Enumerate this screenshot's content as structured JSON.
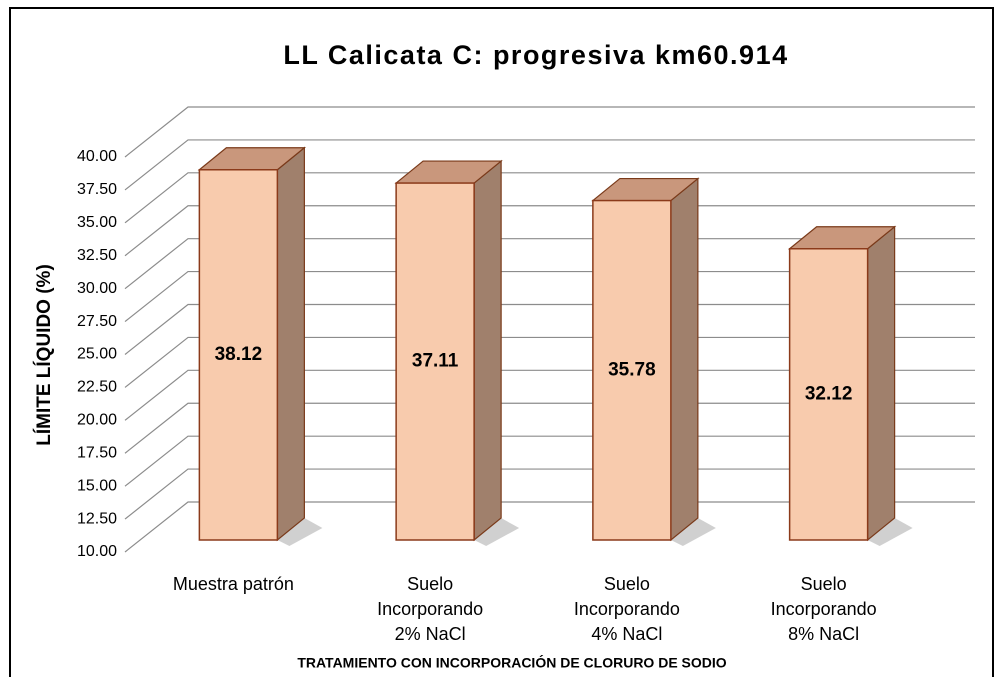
{
  "chart_data": {
    "type": "bar3d",
    "title": "LL Calicata C: progresiva km60.914",
    "ylabel": "LÍMITE LÍQUIDO (%)",
    "xlabel": "TRATAMIENTO CON INCORPORACIÓN DE CLORURO DE SODIO",
    "categories": [
      [
        "Muestra patrón"
      ],
      [
        "Suelo",
        "Incorporando",
        "2% NaCl"
      ],
      [
        "Suelo",
        "Incorporando",
        "4% NaCl"
      ],
      [
        "Suelo",
        "Incorporando",
        "8% NaCl"
      ]
    ],
    "values": [
      38.12,
      37.11,
      35.78,
      32.12
    ],
    "color": "#f8cbad",
    "ylim": [
      10,
      40
    ],
    "yticks": [
      {
        "value": 10,
        "label": "10.00"
      },
      {
        "value": 12.5,
        "label": "12.50"
      },
      {
        "value": 15,
        "label": "15.00"
      },
      {
        "value": 17.5,
        "label": "17.50"
      },
      {
        "value": 20,
        "label": "20.00"
      },
      {
        "value": 22.5,
        "label": "22.50"
      },
      {
        "value": 25,
        "label": "25.00"
      },
      {
        "value": 27.5,
        "label": "27.50"
      },
      {
        "value": 30,
        "label": "30.00"
      },
      {
        "value": 32.5,
        "label": "32.50"
      },
      {
        "value": 35,
        "label": "35.00"
      },
      {
        "value": 37.5,
        "label": "37.50"
      },
      {
        "value": 40,
        "label": "40.00"
      }
    ],
    "grid": true
  }
}
